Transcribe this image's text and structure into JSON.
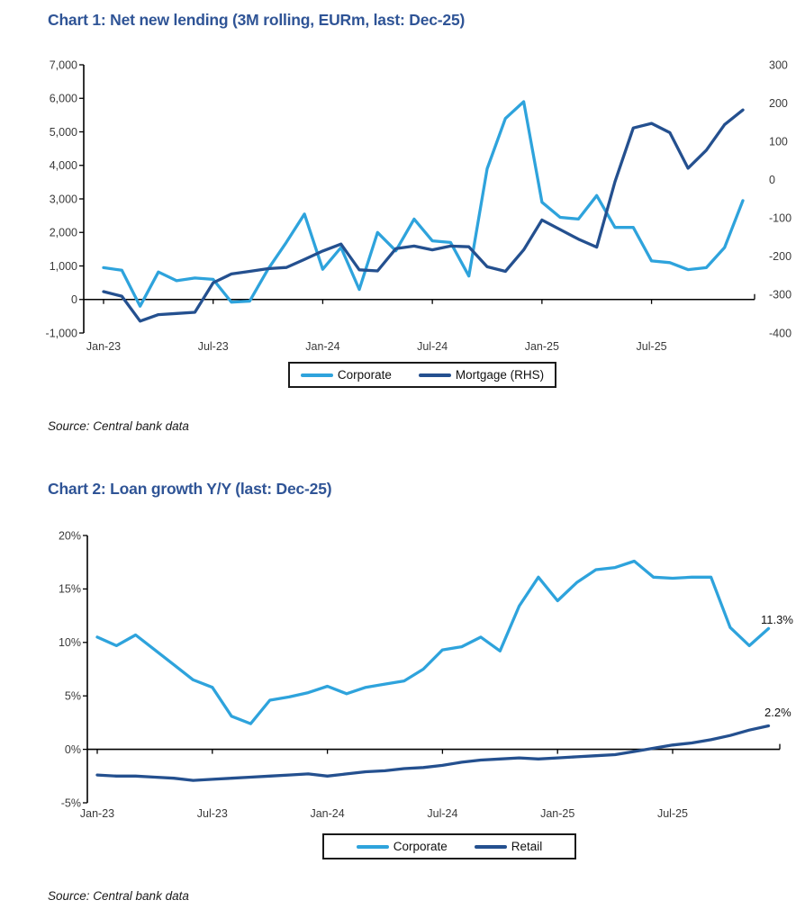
{
  "page": {
    "background": "#ffffff",
    "title_color": "#2F5496",
    "axis_color": "#000000",
    "axis_text_color": "#3a3a3a"
  },
  "chart_data": [
    {
      "id": "chart1",
      "type": "line",
      "title": "Chart 1: Net new lending (3M rolling, EURm, last: Dec-25)",
      "source": "Source: Central bank data",
      "grid": false,
      "legend_position": "bottom-center",
      "x_labels": [
        "Jan-23",
        "Feb-23",
        "Mar-23",
        "Apr-23",
        "May-23",
        "Jun-23",
        "Jul-23",
        "Aug-23",
        "Sep-23",
        "Oct-23",
        "Nov-23",
        "Dec-23",
        "Jan-24",
        "Feb-24",
        "Mar-24",
        "Apr-24",
        "May-24",
        "Jun-24",
        "Jul-24",
        "Aug-24",
        "Sep-24",
        "Oct-24",
        "Nov-24",
        "Dec-24",
        "Jan-25",
        "Feb-25",
        "Mar-25",
        "Apr-25",
        "May-25",
        "Jun-25",
        "Jul-25",
        "Aug-25",
        "Sep-25",
        "Oct-25",
        "Nov-25",
        "Dec-25"
      ],
      "x_tick_labels": [
        "Jan-23",
        "Jul-23",
        "Jan-24",
        "Jul-24",
        "Jan-25",
        "Jul-25"
      ],
      "x_tick_every": 6,
      "left_axis": {
        "min": -1000,
        "max": 7000,
        "step": 1000,
        "tick_labels": [
          "7,000",
          "6,000",
          "5,000",
          "4,000",
          "3,000",
          "2,000",
          "1,000",
          "0",
          "-1,000"
        ]
      },
      "right_axis": {
        "min": -400,
        "max": 300,
        "step": 100,
        "tick_labels": [
          "300",
          "200",
          "100",
          "0",
          "-100",
          "-200",
          "-300",
          "-400"
        ]
      },
      "series": [
        {
          "name": "Corporate",
          "axis": "left",
          "color": "#2EA3DC",
          "values": [
            950,
            870,
            -200,
            820,
            560,
            640,
            600,
            -80,
            -50,
            900,
            1700,
            2550,
            900,
            1550,
            300,
            2000,
            1450,
            2400,
            1750,
            1700,
            700,
            3900,
            5400,
            5900,
            2900,
            2450,
            2400,
            3100,
            2150,
            2150,
            1150,
            1100,
            890,
            950,
            1550,
            2950
          ]
        },
        {
          "name": "Mortgage  (RHS)",
          "axis": "right",
          "color": "#24508F",
          "values": [
            -292,
            -304,
            -369,
            -352,
            -349,
            -346,
            -269,
            -246,
            -239,
            -232,
            -229,
            -208,
            -186,
            -168,
            -235,
            -238,
            -180,
            -173,
            -183,
            -173,
            -175,
            -227,
            -239,
            -183,
            -105,
            -130,
            -155,
            -176,
            -5,
            135,
            147,
            123,
            30,
            77,
            144,
            182
          ]
        }
      ],
      "annotations": []
    },
    {
      "id": "chart2",
      "type": "line",
      "title": "Chart 2: Loan growth Y/Y (last: Dec-25)",
      "source": "Source: Central bank data",
      "grid": false,
      "legend_position": "bottom-center",
      "x_labels": [
        "Jan-23",
        "Feb-23",
        "Mar-23",
        "Apr-23",
        "May-23",
        "Jun-23",
        "Jul-23",
        "Aug-23",
        "Sep-23",
        "Oct-23",
        "Nov-23",
        "Dec-23",
        "Jan-24",
        "Feb-24",
        "Mar-24",
        "Apr-24",
        "May-24",
        "Jun-24",
        "Jul-24",
        "Aug-24",
        "Sep-24",
        "Oct-24",
        "Nov-24",
        "Dec-24",
        "Jan-25",
        "Feb-25",
        "Mar-25",
        "Apr-25",
        "May-25",
        "Jun-25",
        "Jul-25",
        "Aug-25",
        "Sep-25",
        "Oct-25",
        "Nov-25",
        "Dec-25"
      ],
      "x_tick_labels": [
        "Jan-23",
        "Jul-23",
        "Jan-24",
        "Jul-24",
        "Jan-25",
        "Jul-25"
      ],
      "x_tick_every": 6,
      "left_axis": {
        "min": -5,
        "max": 20,
        "step": 5,
        "tick_labels": [
          "20%",
          "15%",
          "10%",
          "5%",
          "0%",
          "-5%"
        ]
      },
      "series": [
        {
          "name": "Corporate",
          "axis": "left",
          "color": "#2EA3DC",
          "values": [
            10.5,
            9.7,
            10.7,
            9.3,
            7.9,
            6.5,
            5.8,
            3.1,
            2.4,
            4.6,
            4.9,
            5.3,
            5.9,
            5.2,
            5.8,
            6.1,
            6.4,
            7.5,
            9.3,
            9.6,
            10.5,
            9.2,
            13.4,
            16.1,
            13.9,
            15.6,
            16.8,
            17.0,
            17.6,
            16.1,
            16.0,
            16.1,
            16.1,
            11.4,
            9.7,
            11.3
          ]
        },
        {
          "name": "Retail",
          "axis": "left",
          "color": "#24508F",
          "values": [
            -2.4,
            -2.5,
            -2.5,
            -2.6,
            -2.7,
            -2.9,
            -2.8,
            -2.7,
            -2.6,
            -2.5,
            -2.4,
            -2.3,
            -2.5,
            -2.3,
            -2.1,
            -2.0,
            -1.8,
            -1.7,
            -1.5,
            -1.2,
            -1.0,
            -0.9,
            -0.8,
            -0.9,
            -0.8,
            -0.7,
            -0.6,
            -0.5,
            -0.2,
            0.1,
            0.4,
            0.6,
            0.9,
            1.3,
            1.8,
            2.2
          ]
        }
      ],
      "annotations": [
        {
          "text": "11.3%",
          "series": "Corporate"
        },
        {
          "text": "2.2%",
          "series": "Retail"
        }
      ]
    }
  ]
}
